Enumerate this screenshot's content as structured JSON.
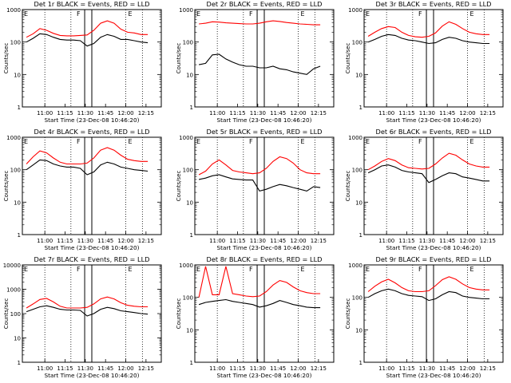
{
  "window": {
    "background": "#ffffff",
    "plot_background": "#ffffff",
    "frame_color": "#000000"
  },
  "colors": {
    "events": "#000000",
    "lld": "#ff0000",
    "marker_line": "#000000",
    "dotted_line": "#000000"
  },
  "labels": {
    "ylabel": "Counts/sec",
    "xlabel": "Start Time (23-Dec-08 10:46:20)",
    "marker_F": "F",
    "marker_E": "E",
    "x_ticks": [
      "11:00",
      "11:15",
      "11:30",
      "11:45",
      "12:00",
      "12:15"
    ],
    "y_ticks_4": [
      "1",
      "10",
      "100",
      "1000"
    ],
    "y_ticks_5": [
      "1",
      "10",
      "100",
      "1000",
      "10000"
    ]
  },
  "chart_data": [
    {
      "type": "line",
      "title": "Det 1r BLACK = Events, RED = LLD",
      "ylim": [
        1,
        1000
      ],
      "log_y": true,
      "x_minutes": [
        0,
        5,
        10,
        15,
        20,
        25,
        30,
        35,
        40,
        45,
        50,
        55,
        60,
        65,
        70,
        75,
        80,
        85,
        90
      ],
      "series": [
        {
          "name": "RED = LLD",
          "values": [
            140,
            180,
            260,
            230,
            185,
            160,
            155,
            155,
            160,
            165,
            230,
            380,
            450,
            380,
            250,
            200,
            190,
            170,
            170
          ]
        },
        {
          "name": "BLACK = Events",
          "values": [
            100,
            130,
            180,
            170,
            140,
            120,
            115,
            115,
            110,
            75,
            90,
            140,
            170,
            150,
            120,
            120,
            110,
            100,
            95
          ]
        }
      ]
    },
    {
      "type": "line",
      "title": "Det 2r BLACK = Events, RED = LLD",
      "ylim": [
        1,
        1000
      ],
      "log_y": true,
      "x_minutes": [
        0,
        5,
        10,
        15,
        20,
        25,
        30,
        35,
        40,
        45,
        50,
        55,
        60,
        65,
        70,
        75,
        80,
        85,
        90
      ],
      "series": [
        {
          "name": "RED = LLD",
          "values": [
            360,
            380,
            420,
            410,
            390,
            380,
            370,
            360,
            360,
            380,
            420,
            450,
            430,
            400,
            380,
            360,
            350,
            340,
            340
          ]
        },
        {
          "name": "BLACK = Events",
          "values": [
            20,
            22,
            40,
            42,
            30,
            24,
            20,
            18,
            18,
            16,
            16,
            18,
            15,
            14,
            12,
            11,
            10,
            15,
            18
          ]
        }
      ]
    },
    {
      "type": "line",
      "title": "Det 3r BLACK = Events, RED = LLD",
      "ylim": [
        1,
        1000
      ],
      "log_y": true,
      "x_minutes": [
        0,
        5,
        10,
        15,
        20,
        25,
        30,
        35,
        40,
        45,
        50,
        55,
        60,
        65,
        70,
        75,
        80,
        85,
        90
      ],
      "series": [
        {
          "name": "RED = LLD",
          "values": [
            150,
            200,
            260,
            300,
            280,
            200,
            160,
            145,
            140,
            150,
            190,
            310,
            420,
            350,
            260,
            200,
            180,
            170,
            170
          ]
        },
        {
          "name": "BLACK = Events",
          "values": [
            100,
            120,
            150,
            170,
            160,
            130,
            115,
            110,
            100,
            90,
            95,
            120,
            140,
            130,
            110,
            100,
            95,
            90,
            90
          ]
        }
      ]
    },
    {
      "type": "line",
      "title": "Det 4r BLACK = Events, RED = LLD",
      "ylim": [
        1,
        1000
      ],
      "log_y": true,
      "x_minutes": [
        0,
        5,
        10,
        15,
        20,
        25,
        30,
        35,
        40,
        45,
        50,
        55,
        60,
        65,
        70,
        75,
        80,
        85,
        90
      ],
      "series": [
        {
          "name": "RED = LLD",
          "values": [
            150,
            250,
            380,
            330,
            230,
            170,
            150,
            150,
            150,
            160,
            230,
            400,
            480,
            400,
            280,
            210,
            190,
            180,
            180
          ]
        },
        {
          "name": "BLACK = Events",
          "values": [
            100,
            140,
            200,
            190,
            150,
            130,
            120,
            120,
            110,
            70,
            85,
            140,
            170,
            150,
            120,
            110,
            100,
            95,
            90
          ]
        }
      ]
    },
    {
      "type": "line",
      "title": "Det 5r BLACK = Events, RED = LLD",
      "ylim": [
        1,
        1000
      ],
      "log_y": true,
      "x_minutes": [
        0,
        5,
        10,
        15,
        20,
        25,
        30,
        35,
        40,
        45,
        50,
        55,
        60,
        65,
        70,
        75,
        80,
        85,
        90
      ],
      "series": [
        {
          "name": "RED = LLD",
          "values": [
            70,
            90,
            150,
            200,
            140,
            95,
            85,
            80,
            75,
            80,
            110,
            180,
            250,
            220,
            160,
            100,
            80,
            75,
            75
          ]
        },
        {
          "name": "BLACK = Events",
          "values": [
            50,
            55,
            65,
            70,
            60,
            52,
            50,
            48,
            48,
            22,
            25,
            30,
            35,
            32,
            28,
            25,
            22,
            30,
            28
          ]
        }
      ]
    },
    {
      "type": "line",
      "title": "Det 6r BLACK = Events, RED = LLD",
      "ylim": [
        1,
        1000
      ],
      "log_y": true,
      "x_minutes": [
        0,
        5,
        10,
        15,
        20,
        25,
        30,
        35,
        40,
        45,
        50,
        55,
        60,
        65,
        70,
        75,
        80,
        85,
        90
      ],
      "series": [
        {
          "name": "RED = LLD",
          "values": [
            100,
            130,
            180,
            220,
            190,
            140,
            115,
            110,
            105,
            110,
            150,
            230,
            320,
            280,
            200,
            150,
            130,
            120,
            120
          ]
        },
        {
          "name": "BLACK = Events",
          "values": [
            80,
            100,
            130,
            140,
            120,
            95,
            85,
            80,
            75,
            40,
            50,
            65,
            80,
            75,
            60,
            55,
            50,
            45,
            45
          ]
        }
      ]
    },
    {
      "type": "line",
      "title": "Det 7r BLACK = Events, RED = LLD",
      "ylim": [
        1,
        10000
      ],
      "log_y": true,
      "x_minutes": [
        0,
        5,
        10,
        15,
        20,
        25,
        30,
        35,
        40,
        45,
        50,
        55,
        60,
        65,
        70,
        75,
        80,
        85,
        90
      ],
      "series": [
        {
          "name": "RED = LLD",
          "values": [
            170,
            250,
            380,
            420,
            300,
            200,
            170,
            170,
            170,
            180,
            250,
            400,
            480,
            400,
            280,
            220,
            200,
            190,
            190
          ]
        },
        {
          "name": "BLACK = Events",
          "values": [
            120,
            150,
            190,
            210,
            180,
            150,
            140,
            140,
            135,
            80,
            100,
            150,
            180,
            160,
            130,
            120,
            110,
            100,
            95
          ]
        }
      ]
    },
    {
      "type": "line",
      "title": "Det 8r BLACK = Events, RED = LLD",
      "ylim": [
        1,
        1000
      ],
      "log_y": true,
      "x_minutes": [
        0,
        5,
        10,
        15,
        20,
        25,
        30,
        35,
        40,
        45,
        50,
        55,
        60,
        65,
        70,
        75,
        80,
        85,
        90
      ],
      "series": [
        {
          "name": "RED = LLD",
          "values": [
            100,
            900,
            120,
            120,
            900,
            130,
            120,
            110,
            105,
            110,
            150,
            240,
            330,
            290,
            210,
            160,
            140,
            130,
            130
          ]
        },
        {
          "name": "BLACK = Events",
          "values": [
            60,
            70,
            75,
            80,
            85,
            75,
            70,
            65,
            60,
            50,
            55,
            65,
            80,
            70,
            60,
            55,
            50,
            48,
            48
          ]
        }
      ]
    },
    {
      "type": "line",
      "title": "Det 9r BLACK = Events, RED = LLD",
      "ylim": [
        1,
        1000
      ],
      "log_y": true,
      "x_minutes": [
        0,
        5,
        10,
        15,
        20,
        25,
        30,
        35,
        40,
        45,
        50,
        55,
        60,
        65,
        70,
        75,
        80,
        85,
        90
      ],
      "series": [
        {
          "name": "RED = LLD",
          "values": [
            150,
            220,
            300,
            360,
            280,
            200,
            160,
            150,
            150,
            160,
            230,
            350,
            430,
            360,
            260,
            200,
            180,
            170,
            170
          ]
        },
        {
          "name": "BLACK = Events",
          "values": [
            100,
            130,
            160,
            180,
            160,
            130,
            115,
            110,
            105,
            80,
            90,
            120,
            150,
            140,
            110,
            100,
            95,
            90,
            90
          ]
        }
      ]
    }
  ]
}
